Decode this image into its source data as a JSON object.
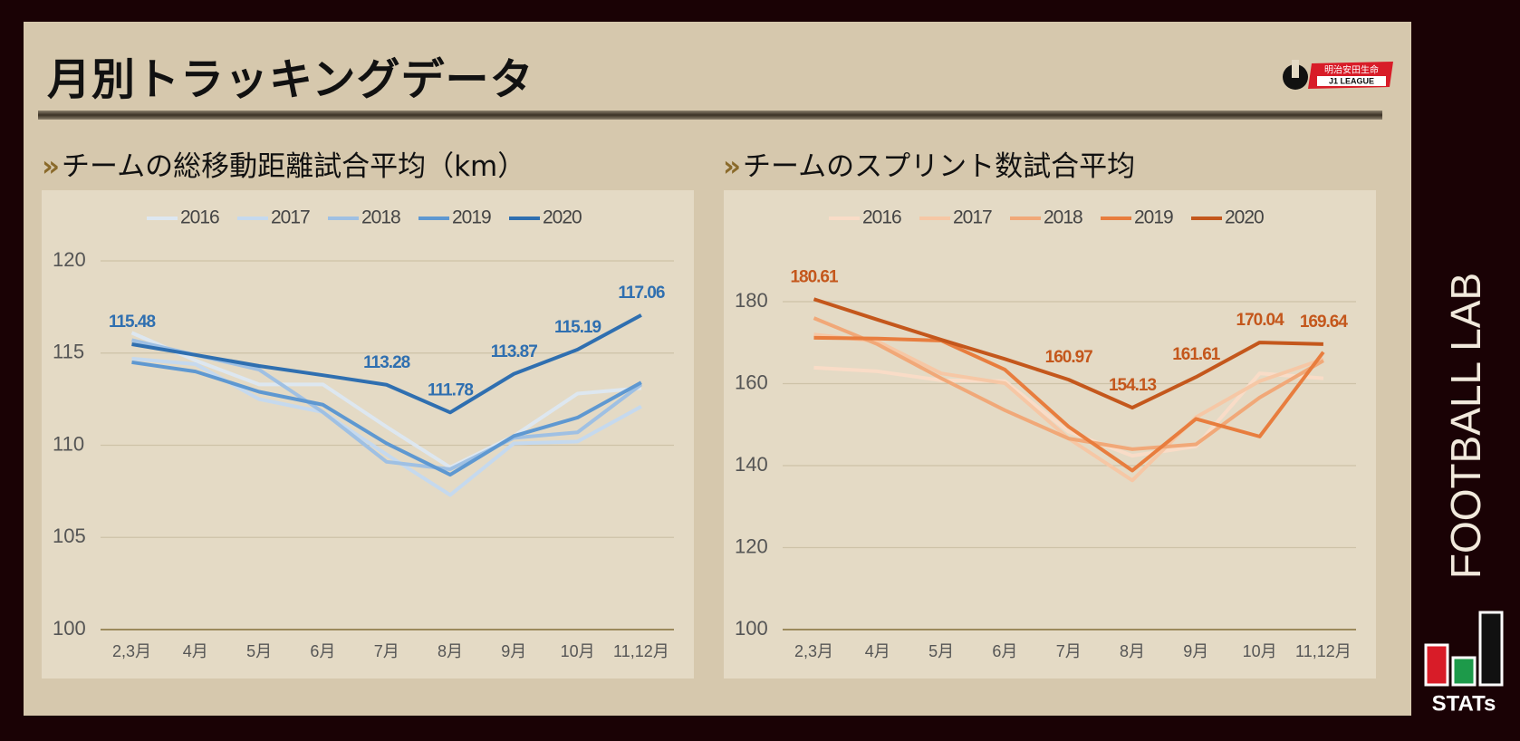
{
  "header": {
    "title": "月別トラッキングデータ",
    "logo_top": "明治安田生命",
    "logo_bottom": "J1 LEAGUE"
  },
  "branding": {
    "name": "FOOTBALL LAB",
    "stats": "STATs"
  },
  "chart_data": [
    {
      "type": "line",
      "title": "チームの総移動距離試合平均（km）",
      "categories": [
        "2,3月",
        "4月",
        "5月",
        "6月",
        "7月",
        "8月",
        "9月",
        "10月",
        "11,12月"
      ],
      "ylim": [
        100,
        120
      ],
      "yticks": [
        100,
        105,
        110,
        115,
        120
      ],
      "grid": true,
      "legend": "top",
      "series": [
        {
          "name": "2016",
          "color": "#dde7f0",
          "values": [
            116.1,
            114.6,
            113.3,
            113.3,
            111.0,
            108.8,
            110.5,
            112.8,
            113.1
          ]
        },
        {
          "name": "2017",
          "color": "#c5d9ee",
          "values": [
            114.7,
            114.4,
            112.5,
            111.8,
            109.5,
            107.3,
            110.1,
            110.2,
            112.1
          ]
        },
        {
          "name": "2018",
          "color": "#9fc0e3",
          "values": [
            115.7,
            114.9,
            114.1,
            111.8,
            109.1,
            108.7,
            110.4,
            110.7,
            113.3
          ]
        },
        {
          "name": "2019",
          "color": "#5e98d1",
          "values": [
            114.5,
            114.0,
            112.9,
            112.2,
            110.1,
            108.4,
            110.5,
            111.5,
            113.4
          ]
        },
        {
          "name": "2020",
          "color": "#2f6fb0",
          "values": [
            115.48,
            114.9,
            114.3,
            113.8,
            113.28,
            111.78,
            113.87,
            115.19,
            117.06
          ],
          "value_labels": [
            "115.48",
            null,
            null,
            null,
            "113.28",
            "111.78",
            "113.87",
            "115.19",
            "117.06"
          ]
        }
      ]
    },
    {
      "type": "line",
      "title": "チームのスプリント数試合平均",
      "categories": [
        "2,3月",
        "4月",
        "5月",
        "6月",
        "7月",
        "8月",
        "9月",
        "10月",
        "11,12月"
      ],
      "ylim": [
        100,
        180
      ],
      "yticks": [
        100,
        120,
        140,
        160,
        180
      ],
      "grid": true,
      "legend": "top",
      "series": [
        {
          "name": "2016",
          "color": "#f9dcc7",
          "values": [
            163.9,
            163.0,
            160.8,
            160.6,
            148.3,
            142.4,
            144.7,
            162.5,
            161.3
          ]
        },
        {
          "name": "2017",
          "color": "#f6c7a5",
          "values": [
            172.0,
            170.3,
            162.5,
            160.1,
            146.6,
            136.4,
            151.8,
            160.6,
            166.0
          ]
        },
        {
          "name": "2018",
          "color": "#f1a878",
          "values": [
            176.0,
            169.6,
            161.3,
            153.5,
            146.6,
            144.0,
            145.2,
            156.6,
            165.6
          ]
        },
        {
          "name": "2019",
          "color": "#e87d3e",
          "values": [
            171.2,
            171.0,
            170.5,
            163.4,
            149.5,
            138.8,
            151.4,
            147.1,
            167.7
          ]
        },
        {
          "name": "2020",
          "color": "#c4571c",
          "values": [
            180.61,
            175.6,
            170.7,
            166.0,
            160.97,
            154.13,
            161.61,
            170.04,
            169.64
          ],
          "value_labels": [
            "180.61",
            null,
            null,
            null,
            "160.97",
            "154.13",
            "161.61",
            "170.04",
            "169.64"
          ]
        }
      ]
    }
  ]
}
